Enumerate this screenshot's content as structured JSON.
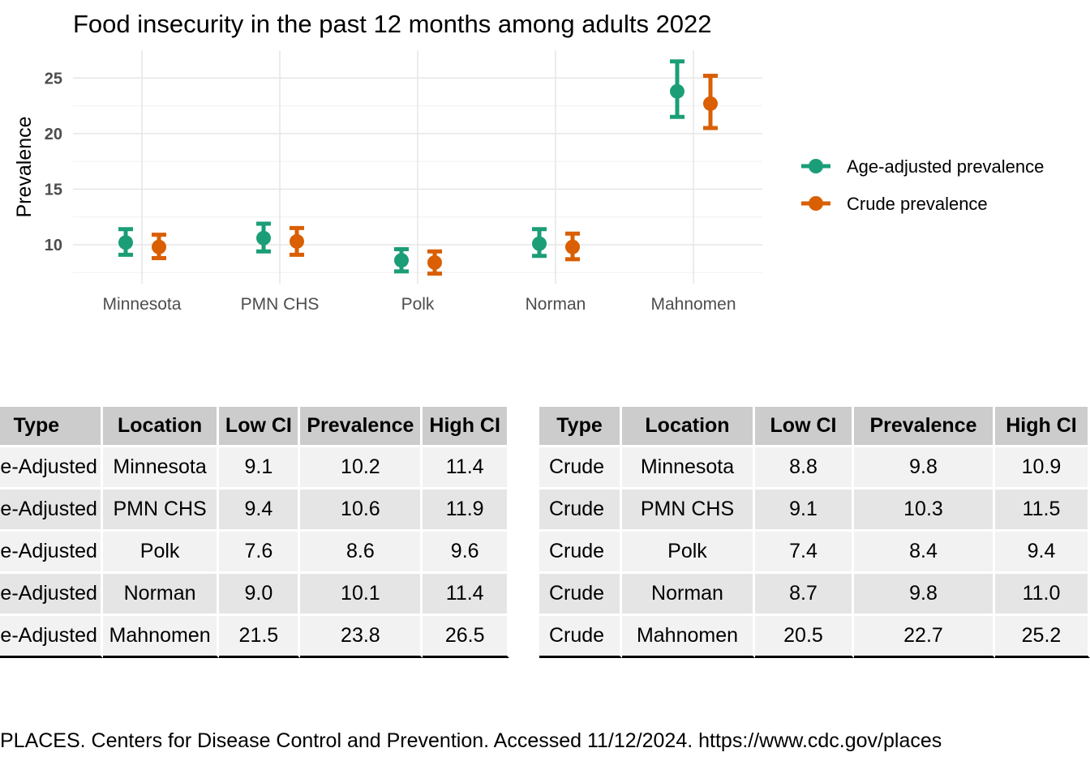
{
  "chart_data": {
    "type": "scatter",
    "title": "Food insecurity in the past 12 months among adults 2022",
    "xlabel": "",
    "ylabel": "Prevalence",
    "categories": [
      "Minnesota",
      "PMN CHS",
      "Polk",
      "Norman",
      "Mahnomen"
    ],
    "ylim": [
      6.5,
      27.5
    ],
    "yticks": [
      10,
      15,
      20,
      25
    ],
    "grid": true,
    "legend_position": "right",
    "series": [
      {
        "name": "Age-adjusted prevalence",
        "color": "#1b9e77",
        "values": [
          10.2,
          10.6,
          8.6,
          10.1,
          23.8
        ],
        "low": [
          9.1,
          9.4,
          7.6,
          9.0,
          21.5
        ],
        "high": [
          11.4,
          11.9,
          9.6,
          11.4,
          26.5
        ]
      },
      {
        "name": "Crude prevalence",
        "color": "#d95f02",
        "values": [
          9.8,
          10.3,
          8.4,
          9.8,
          22.7
        ],
        "low": [
          8.8,
          9.1,
          7.4,
          8.7,
          20.5
        ],
        "high": [
          10.9,
          11.5,
          9.4,
          11.0,
          25.2
        ]
      }
    ]
  },
  "table_left": {
    "headers": [
      "Type",
      "Location",
      "Low CI",
      "Prevalence",
      "High CI"
    ],
    "rows": [
      [
        "Age-Adjusted",
        "Minnesota",
        "9.1",
        "10.2",
        "11.4"
      ],
      [
        "Age-Adjusted",
        "PMN CHS",
        "9.4",
        "10.6",
        "11.9"
      ],
      [
        "Age-Adjusted",
        "Polk",
        "7.6",
        "8.6",
        "9.6"
      ],
      [
        "Age-Adjusted",
        "Norman",
        "9.0",
        "10.1",
        "11.4"
      ],
      [
        "Age-Adjusted",
        "Mahnomen",
        "21.5",
        "23.8",
        "26.5"
      ]
    ]
  },
  "table_right": {
    "headers": [
      "Type",
      "Location",
      "Low CI",
      "Prevalence",
      "High CI"
    ],
    "rows": [
      [
        "Crude",
        "Minnesota",
        "8.8",
        "9.8",
        "10.9"
      ],
      [
        "Crude",
        "PMN CHS",
        "9.1",
        "10.3",
        "11.5"
      ],
      [
        "Crude",
        "Polk",
        "7.4",
        "8.4",
        "9.4"
      ],
      [
        "Crude",
        "Norman",
        "8.7",
        "9.8",
        "11.0"
      ],
      [
        "Crude",
        "Mahnomen",
        "20.5",
        "22.7",
        "25.2"
      ]
    ]
  },
  "caption": "PLACES. Centers for Disease Control and Prevention. Accessed 11/12/2024. https://www.cdc.gov/places"
}
